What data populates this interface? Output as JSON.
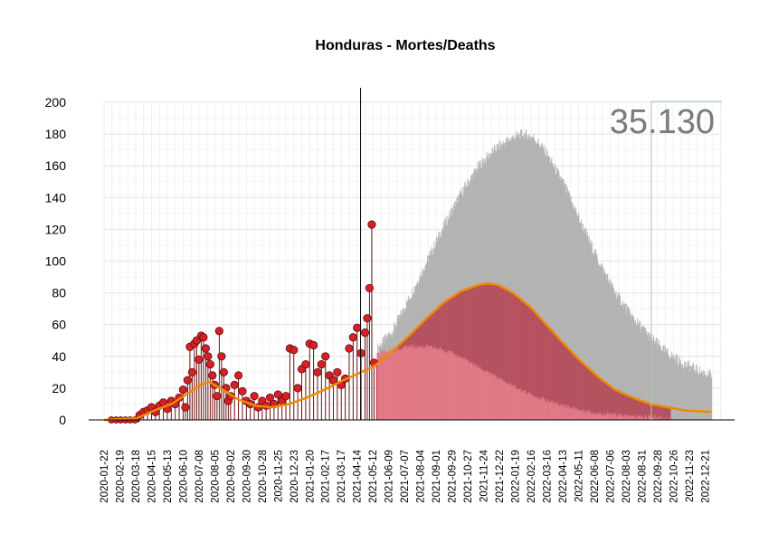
{
  "chart_data": {
    "type": "area",
    "title": "Honduras - Mortes/Deaths",
    "total_label": "35.130",
    "ylim": [
      0,
      200
    ],
    "y_ticks": [
      0,
      20,
      40,
      60,
      80,
      100,
      120,
      140,
      160,
      180,
      200
    ],
    "x_start": "2020-01-22",
    "x_end": "2023-01-20",
    "forecast_start": "2021-05-19",
    "x_tick_labels": [
      "2020-01-22",
      "2020-02-19",
      "2020-03-18",
      "2020-04-15",
      "2020-05-13",
      "2020-06-10",
      "2020-07-08",
      "2020-08-05",
      "2020-09-02",
      "2020-09-30",
      "2020-10-28",
      "2020-11-25",
      "2020-12-23",
      "2021-01-20",
      "2021-02-17",
      "2021-03-17",
      "2021-04-14",
      "2021-05-12",
      "2021-06-09",
      "2021-07-07",
      "2021-08-04",
      "2021-09-01",
      "2021-09-29",
      "2021-10-27",
      "2021-11-24",
      "2021-12-22",
      "2022-01-19",
      "2022-02-16",
      "2022-03-16",
      "2022-04-13",
      "2022-05-11",
      "2022-06-08",
      "2022-07-06",
      "2022-08-03",
      "2022-08-31",
      "2022-09-28",
      "2022-10-26",
      "2022-11-23",
      "2022-12-21"
    ],
    "grid": true,
    "series": [
      {
        "kind": "observed_daily",
        "color": "#d71f26",
        "points": [
          [
            "2020-03-25",
            3
          ],
          [
            "2020-04-01",
            5
          ],
          [
            "2020-04-08",
            6
          ],
          [
            "2020-04-15",
            8
          ],
          [
            "2020-04-22",
            5
          ],
          [
            "2020-04-29",
            9
          ],
          [
            "2020-05-06",
            11
          ],
          [
            "2020-05-13",
            7
          ],
          [
            "2020-05-20",
            12
          ],
          [
            "2020-05-27",
            10
          ],
          [
            "2020-06-03",
            14
          ],
          [
            "2020-06-10",
            19
          ],
          [
            "2020-06-14",
            8
          ],
          [
            "2020-06-18",
            25
          ],
          [
            "2020-06-22",
            46
          ],
          [
            "2020-06-26",
            30
          ],
          [
            "2020-06-30",
            48
          ],
          [
            "2020-07-04",
            50
          ],
          [
            "2020-07-08",
            38
          ],
          [
            "2020-07-12",
            53
          ],
          [
            "2020-07-16",
            52
          ],
          [
            "2020-07-20",
            45
          ],
          [
            "2020-07-24",
            40
          ],
          [
            "2020-07-28",
            35
          ],
          [
            "2020-08-01",
            28
          ],
          [
            "2020-08-05",
            22
          ],
          [
            "2020-08-09",
            15
          ],
          [
            "2020-08-13",
            56
          ],
          [
            "2020-08-17",
            40
          ],
          [
            "2020-08-21",
            30
          ],
          [
            "2020-08-25",
            20
          ],
          [
            "2020-08-29",
            12
          ],
          [
            "2020-09-02",
            15
          ],
          [
            "2020-09-09",
            22
          ],
          [
            "2020-09-16",
            28
          ],
          [
            "2020-09-23",
            18
          ],
          [
            "2020-09-30",
            12
          ],
          [
            "2020-10-07",
            10
          ],
          [
            "2020-10-14",
            15
          ],
          [
            "2020-10-21",
            8
          ],
          [
            "2020-10-28",
            12
          ],
          [
            "2020-11-04",
            9
          ],
          [
            "2020-11-11",
            14
          ],
          [
            "2020-11-18",
            10
          ],
          [
            "2020-11-25",
            16
          ],
          [
            "2020-12-02",
            12
          ],
          [
            "2020-12-09",
            15
          ],
          [
            "2020-12-16",
            45
          ],
          [
            "2020-12-23",
            44
          ],
          [
            "2020-12-30",
            20
          ],
          [
            "2021-01-06",
            32
          ],
          [
            "2021-01-13",
            35
          ],
          [
            "2021-01-20",
            48
          ],
          [
            "2021-01-27",
            47
          ],
          [
            "2021-02-03",
            30
          ],
          [
            "2021-02-10",
            35
          ],
          [
            "2021-02-17",
            40
          ],
          [
            "2021-02-24",
            28
          ],
          [
            "2021-03-03",
            25
          ],
          [
            "2021-03-10",
            30
          ],
          [
            "2021-03-17",
            22
          ],
          [
            "2021-03-24",
            26
          ],
          [
            "2021-03-31",
            45
          ],
          [
            "2021-04-07",
            52
          ],
          [
            "2021-04-14",
            58
          ],
          [
            "2021-04-21",
            42
          ],
          [
            "2021-04-28",
            55
          ],
          [
            "2021-05-02",
            64
          ],
          [
            "2021-05-06",
            83
          ],
          [
            "2021-05-10",
            123
          ],
          [
            "2021-05-14",
            36
          ]
        ]
      },
      {
        "kind": "smoothed_trend",
        "color": "#f08a00",
        "points": [
          [
            "2020-01-22",
            0
          ],
          [
            "2020-03-20",
            1
          ],
          [
            "2020-04-20",
            6
          ],
          [
            "2020-05-20",
            10
          ],
          [
            "2020-06-20",
            17
          ],
          [
            "2020-07-10",
            22
          ],
          [
            "2020-07-25",
            24
          ],
          [
            "2020-08-15",
            20
          ],
          [
            "2020-09-15",
            13
          ],
          [
            "2020-10-15",
            9
          ],
          [
            "2020-11-15",
            8
          ],
          [
            "2020-12-15",
            10
          ],
          [
            "2021-01-15",
            14
          ],
          [
            "2021-02-15",
            19
          ],
          [
            "2021-03-15",
            24
          ],
          [
            "2021-04-15",
            29
          ],
          [
            "2021-05-15",
            34
          ],
          [
            "2021-06-15",
            43
          ],
          [
            "2021-07-15",
            53
          ],
          [
            "2021-08-15",
            64
          ],
          [
            "2021-09-15",
            74
          ],
          [
            "2021-10-15",
            81
          ],
          [
            "2021-11-15",
            85
          ],
          [
            "2021-12-01",
            86
          ],
          [
            "2021-12-20",
            85
          ],
          [
            "2022-01-15",
            80
          ],
          [
            "2022-02-15",
            71
          ],
          [
            "2022-03-15",
            60
          ],
          [
            "2022-04-15",
            48
          ],
          [
            "2022-05-15",
            37
          ],
          [
            "2022-06-15",
            27
          ],
          [
            "2022-07-15",
            19
          ],
          [
            "2022-08-15",
            14
          ],
          [
            "2022-09-15",
            10
          ],
          [
            "2022-10-15",
            8
          ],
          [
            "2022-11-15",
            6
          ],
          [
            "2023-01-01",
            5
          ]
        ]
      },
      {
        "kind": "forecast_upper",
        "color": "#b3b3b3",
        "points": [
          [
            "2021-05-19",
            45
          ],
          [
            "2021-06-15",
            56
          ],
          [
            "2021-07-15",
            77
          ],
          [
            "2021-08-15",
            100
          ],
          [
            "2021-09-15",
            123
          ],
          [
            "2021-10-15",
            143
          ],
          [
            "2021-11-15",
            160
          ],
          [
            "2021-12-15",
            171
          ],
          [
            "2022-01-15",
            178
          ],
          [
            "2022-02-01",
            180
          ],
          [
            "2022-02-20",
            178
          ],
          [
            "2022-03-15",
            168
          ],
          [
            "2022-04-15",
            148
          ],
          [
            "2022-05-15",
            124
          ],
          [
            "2022-06-15",
            100
          ],
          [
            "2022-07-15",
            80
          ],
          [
            "2022-08-15",
            64
          ],
          [
            "2022-09-15",
            52
          ],
          [
            "2022-10-15",
            42
          ],
          [
            "2022-11-15",
            35
          ],
          [
            "2022-12-15",
            30
          ],
          [
            "2023-01-01",
            28
          ]
        ]
      },
      {
        "kind": "forecast_central",
        "color": "#b5525f",
        "end": "2022-10-20",
        "points": [
          [
            "2021-05-19",
            36
          ],
          [
            "2021-06-15",
            43
          ],
          [
            "2021-07-15",
            53
          ],
          [
            "2021-08-15",
            64
          ],
          [
            "2021-09-15",
            74
          ],
          [
            "2021-10-15",
            81
          ],
          [
            "2021-11-15",
            85
          ],
          [
            "2021-12-01",
            86
          ],
          [
            "2021-12-20",
            85
          ],
          [
            "2022-01-15",
            80
          ],
          [
            "2022-02-15",
            71
          ],
          [
            "2022-03-15",
            60
          ],
          [
            "2022-04-15",
            48
          ],
          [
            "2022-05-15",
            37
          ],
          [
            "2022-06-15",
            27
          ],
          [
            "2022-07-15",
            19
          ],
          [
            "2022-08-15",
            14
          ],
          [
            "2022-09-15",
            10
          ],
          [
            "2022-10-20",
            8
          ]
        ]
      },
      {
        "kind": "forecast_lower",
        "color": "#e07a86",
        "end": "2022-10-20",
        "points": [
          [
            "2021-05-19",
            42
          ],
          [
            "2021-06-15",
            44
          ],
          [
            "2021-07-15",
            46
          ],
          [
            "2021-08-15",
            46
          ],
          [
            "2021-09-15",
            44
          ],
          [
            "2021-10-15",
            39
          ],
          [
            "2021-11-15",
            33
          ],
          [
            "2021-12-15",
            27
          ],
          [
            "2022-01-15",
            21
          ],
          [
            "2022-02-15",
            16
          ],
          [
            "2022-03-15",
            12
          ],
          [
            "2022-04-15",
            9
          ],
          [
            "2022-05-15",
            6
          ],
          [
            "2022-06-15",
            4
          ],
          [
            "2022-07-15",
            3
          ],
          [
            "2022-08-15",
            2
          ],
          [
            "2022-09-15",
            2
          ],
          [
            "2022-10-20",
            1
          ]
        ]
      }
    ]
  }
}
